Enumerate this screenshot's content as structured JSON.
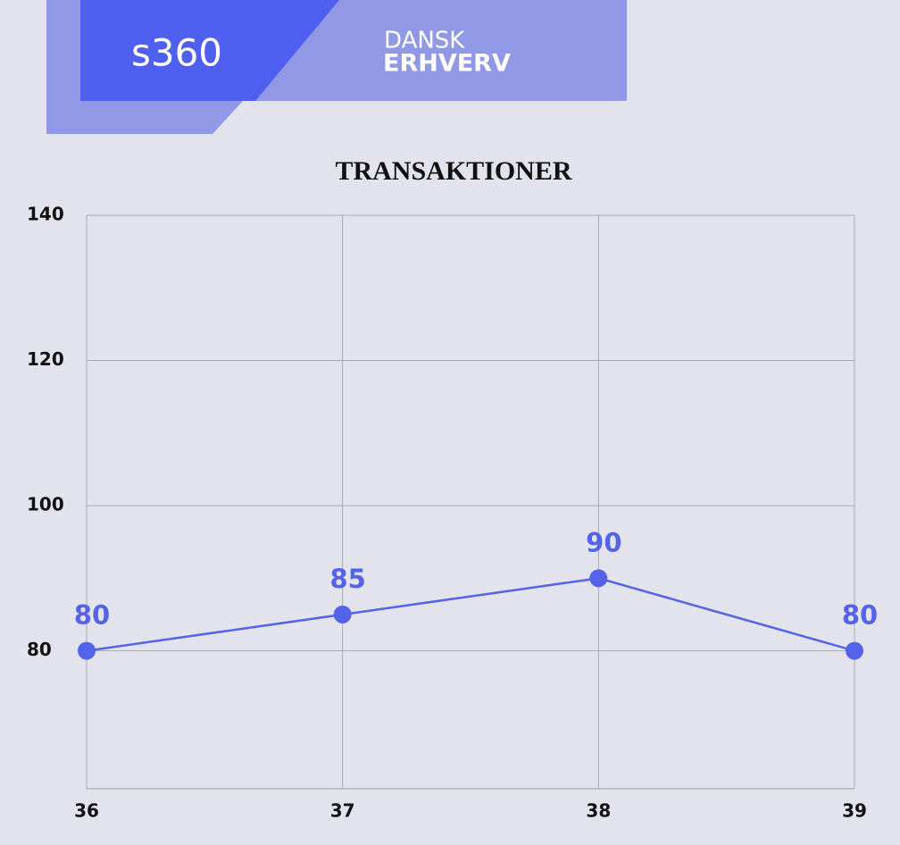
{
  "header": {
    "logo": "s360",
    "brand_line1": "DANSK",
    "brand_line2": "ERHVERV"
  },
  "chart_data": {
    "type": "line",
    "title": "TRANSAKTIONER",
    "x": [
      36,
      37,
      38,
      39
    ],
    "series": [
      {
        "color": "#5563e8",
        "values": [
          80,
          85,
          90,
          80
        ]
      }
    ],
    "xlim": [
      36,
      39
    ],
    "xticks": [
      36,
      37,
      38,
      39
    ],
    "ylim": [
      61,
      140
    ],
    "yticks": [
      80,
      100,
      120,
      140
    ],
    "grid": true
  }
}
